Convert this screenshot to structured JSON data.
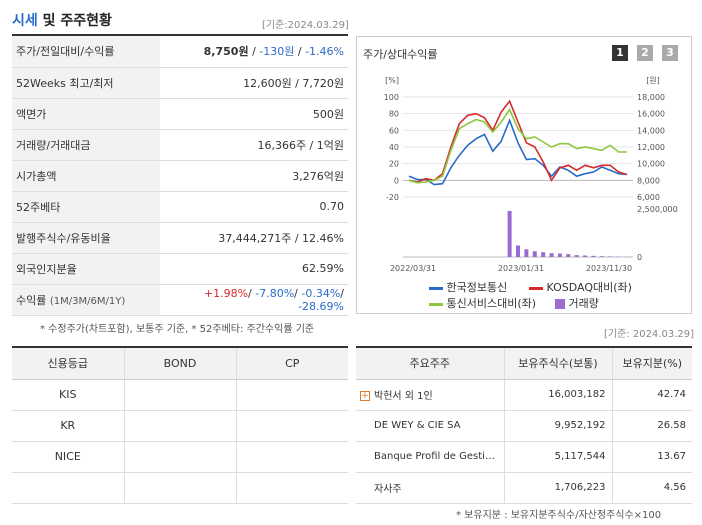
{
  "header": {
    "title_accent": "시세",
    "title_rest": " 및 주주현황",
    "date": "[기준:2024.03.29]"
  },
  "quote": [
    {
      "label": "주가/전일대비/수익률",
      "value_main": "8,750원",
      "value_sep1": " / ",
      "value_change": "-130원",
      "value_sep2": " / ",
      "value_rate": "-1.46%"
    },
    {
      "label": "52Weeks 최고/최저",
      "value": "12,600원 / 7,720원"
    },
    {
      "label": "액면가",
      "value": "500원"
    },
    {
      "label": "거래량/거래대금",
      "value": "16,366주 / 1억원"
    },
    {
      "label": "시가총액",
      "value": "3,276억원"
    },
    {
      "label": "52주베타",
      "value": "0.70"
    },
    {
      "label": "발행주식수/유동비율",
      "value": "37,444,271주 / 12.46%"
    },
    {
      "label": "외국인지분율",
      "value": "62.59%"
    },
    {
      "label": "수익률",
      "label_sub": "(1M/3M/6M/1Y)",
      "r1": "+1.98%",
      "r2": "-7.80%",
      "r3": "-0.34%",
      "r4": "-28.69%",
      "sep": "/ "
    }
  ],
  "note1": "* 수정주가(차트포함), 보통주 기준, * 52주베타: 주간수익률 기준",
  "chart_panel": {
    "title": "주가/상대수익률",
    "tabs": [
      "1",
      "2",
      "3"
    ]
  },
  "chart_data": {
    "type": "line",
    "x_ticks": [
      "2022/03/31",
      "2023/01/31",
      "2023/11/30"
    ],
    "y_left_unit": "[%]",
    "y_left_ticks": [
      "100",
      "80",
      "60",
      "40",
      "20",
      "0",
      "-20"
    ],
    "y_left_lim": [
      -20,
      100
    ],
    "y_right_unit": "[원]",
    "y_right_ticks": [
      "18,000",
      "16,000",
      "14,000",
      "12,000",
      "10,000",
      "8,000",
      "6,000"
    ],
    "y_right_lim": [
      6000,
      18000
    ],
    "vol_ticks": [
      "2,500,000",
      "0"
    ],
    "vol_lim": [
      0,
      2500000
    ],
    "series": [
      {
        "name": "한국정보통신",
        "color": "#2a6cc7",
        "values": [
          5,
          1,
          1,
          -5,
          -4,
          15,
          30,
          42,
          50,
          55,
          35,
          47,
          72,
          45,
          25,
          26,
          18,
          5,
          16,
          12,
          5,
          8,
          10,
          16,
          12,
          8,
          7
        ]
      },
      {
        "name": "KOSDAQ대비(좌)",
        "color": "#d62b2b",
        "values": [
          0,
          -2,
          2,
          0,
          8,
          40,
          68,
          78,
          80,
          75,
          60,
          82,
          95,
          70,
          45,
          40,
          22,
          0,
          15,
          18,
          12,
          18,
          15,
          18,
          18,
          10,
          7
        ]
      },
      {
        "name": "통신서비스대비(좌)",
        "color": "#8dc63f",
        "values": [
          0,
          -3,
          -2,
          0,
          5,
          36,
          62,
          68,
          73,
          70,
          58,
          70,
          85,
          62,
          50,
          52,
          46,
          40,
          44,
          44,
          38,
          40,
          38,
          36,
          42,
          34,
          34
        ]
      }
    ],
    "volume": {
      "name": "거래량",
      "color": "#9b6ccf",
      "values": [
        0,
        0,
        0,
        0,
        0,
        0,
        0,
        0,
        0,
        0,
        0,
        0,
        2400000,
        600000,
        400000,
        300000,
        250000,
        200000,
        180000,
        150000,
        100000,
        80000,
        60000,
        40000,
        30000,
        20000,
        10000
      ]
    }
  },
  "date2": "[기준: 2024.03.29]",
  "credit": {
    "headers": [
      "신용등급",
      "BOND",
      "CP"
    ],
    "rows": [
      [
        "KIS",
        "",
        ""
      ],
      [
        "KR",
        "",
        ""
      ],
      [
        "NICE",
        "",
        ""
      ]
    ]
  },
  "holders": {
    "headers": [
      "주요주주",
      "보유주식수(보통)",
      "보유지분(%)"
    ],
    "rows": [
      [
        "박헌서 외 1인",
        "16,003,182",
        "42.74"
      ],
      [
        "DE WEY  & CIE SA",
        "9,952,192",
        "26.58"
      ],
      [
        "Banque Profil de Gesti…",
        "5,117,544",
        "13.67"
      ],
      [
        "자사주",
        "1,706,223",
        "4.56"
      ]
    ]
  },
  "note2": "* 보유지분 : 보유지분주식수/자산정주식수×100"
}
